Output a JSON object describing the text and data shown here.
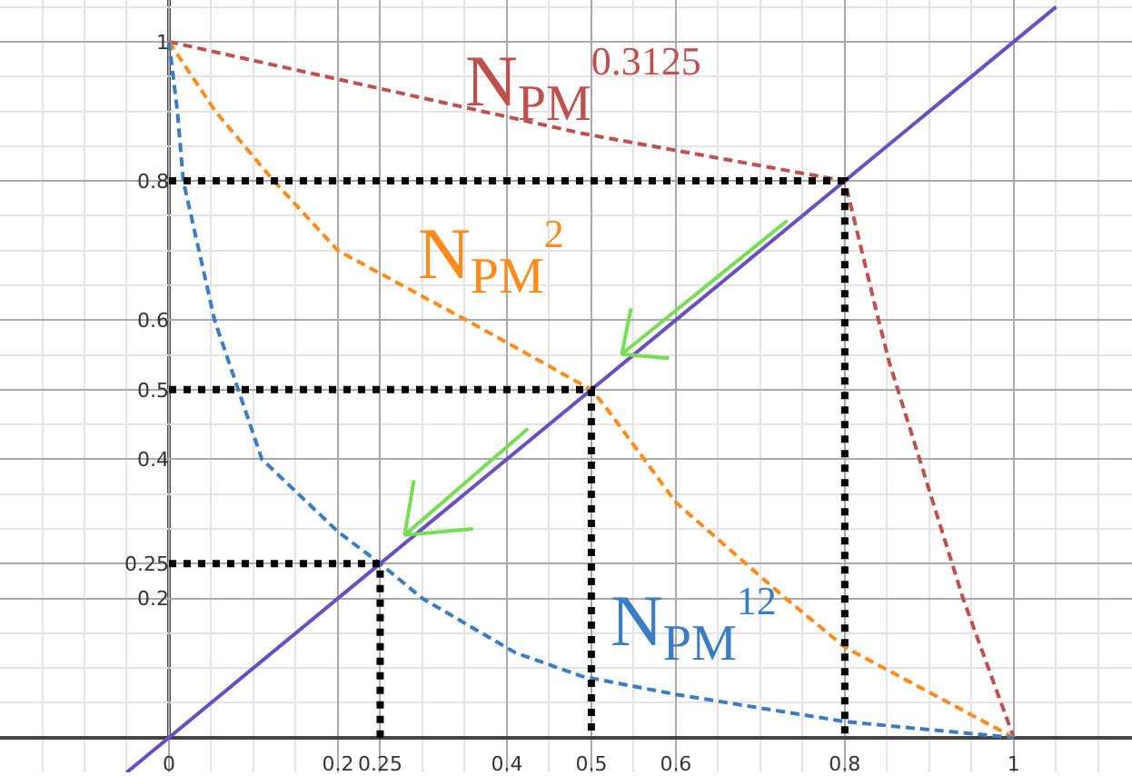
{
  "chart_data": {
    "type": "line",
    "xlim": [
      -0.2,
      1.14
    ],
    "ylim": [
      -0.05,
      1.06
    ],
    "xticks": [
      0,
      0.2,
      0.25,
      0.4,
      0.5,
      0.6,
      0.8,
      1
    ],
    "yticks": [
      0.2,
      0.25,
      0.4,
      0.5,
      0.6,
      0.8,
      1
    ],
    "grid": true,
    "marker": "none",
    "series": [
      {
        "name": "N$_{PM}$$^{0.3125}$",
        "color": "#c0504d",
        "line_style": "dashed",
        "x": [
          0,
          0.49,
          0.8,
          0.84,
          0.853,
          0.94,
          1
        ],
        "values": [
          1,
          0.868,
          0.8,
          0.6,
          0.538,
          0.2,
          0
        ]
      },
      {
        "name": "N$_{PM}$$^{2}$",
        "color": "#ff8c1a",
        "line_style": "dashed",
        "x": [
          0,
          0.055,
          0.124,
          0.2,
          0.352,
          0.5,
          0.52,
          0.6,
          0.73,
          0.8,
          1
        ],
        "values": [
          1,
          0.9,
          0.8,
          0.7,
          0.6,
          0.5,
          0.47,
          0.338,
          0.2,
          0.13,
          0
        ]
      },
      {
        "name": "N$_{PM}$$^{12}$",
        "color": "#3a7dc4",
        "line_style": "dashed",
        "x": [
          0,
          0.01,
          0.017,
          0.054,
          0.082,
          0.11,
          0.2,
          0.25,
          0.3,
          0.41,
          0.489,
          0.6,
          0.8,
          1
        ],
        "values": [
          1,
          0.9,
          0.8,
          0.6,
          0.5,
          0.4,
          0.296,
          0.25,
          0.2,
          0.122,
          0.088,
          0.062,
          0.023,
          0
        ]
      },
      {
        "color": "#6a4fbf",
        "line_style": "solid",
        "x": [
          -0.05,
          1.05
        ],
        "values": [
          -0.05,
          1.05
        ]
      },
      {
        "color": "#000000",
        "line_style": "dotted",
        "x": [
          0,
          0.8,
          0.8
        ],
        "values": [
          0.8,
          0.8,
          0
        ]
      },
      {
        "color": "#000000",
        "line_style": "dotted",
        "x": [
          0,
          0.5,
          0.5
        ],
        "values": [
          0.5,
          0.5,
          0
        ]
      },
      {
        "color": "#000000",
        "line_style": "dotted",
        "x": [
          0,
          0.25,
          0.25
        ],
        "values": [
          0.25,
          0.25,
          0
        ]
      },
      {
        "color": "#77dd55",
        "line_style": "solid",
        "x": [
          0.732,
          0.536,
          0.547,
          null,
          0.536,
          0.592
        ],
        "values": [
          0.743,
          0.551,
          0.617,
          null,
          0.551,
          0.545
        ]
      },
      {
        "color": "#77dd55",
        "line_style": "solid",
        "x": [
          0.425,
          0.279,
          0.29,
          null,
          0.279,
          0.36
        ],
        "values": [
          0.444,
          0.291,
          0.37,
          null,
          0.291,
          0.3
        ]
      }
    ]
  }
}
